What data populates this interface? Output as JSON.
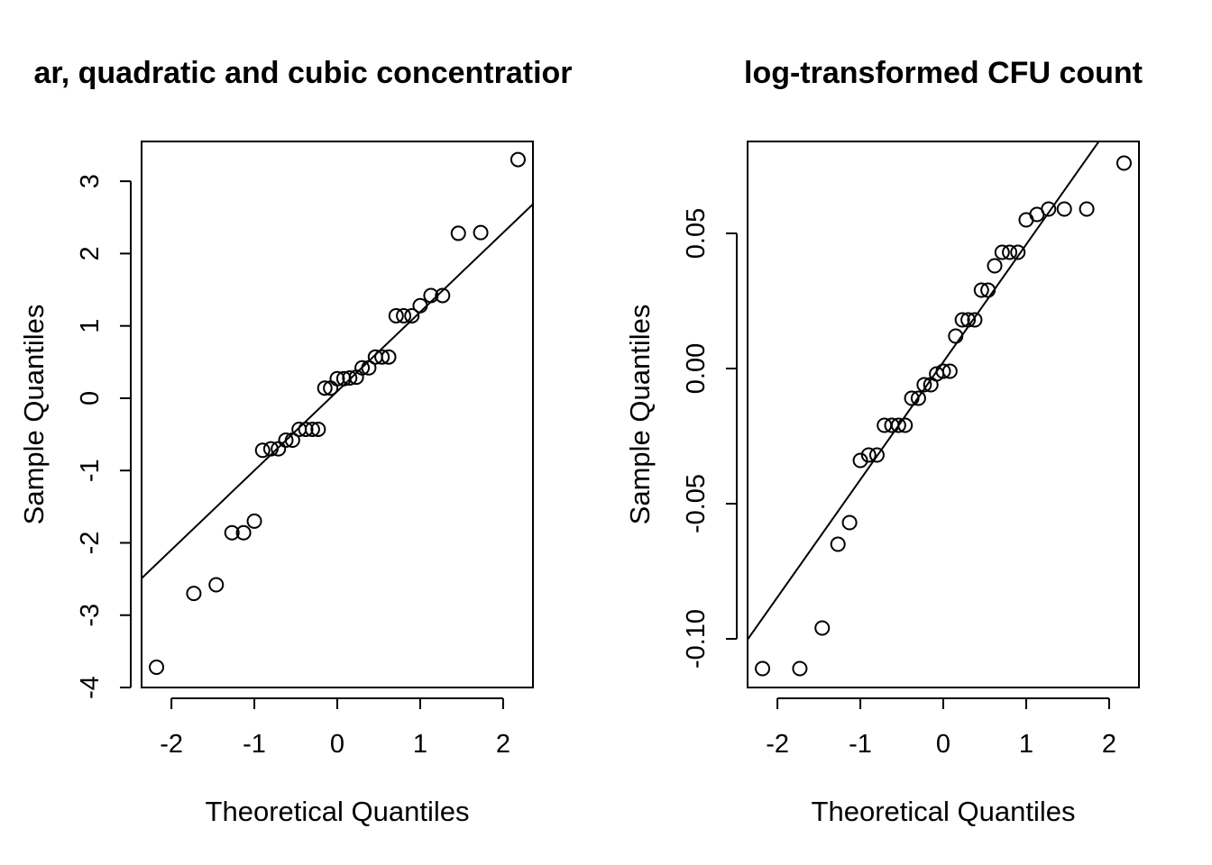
{
  "chart_data": [
    {
      "type": "scatter",
      "title": "ar, quadratic and cubic concentratior",
      "xlabel": "Theoretical Quantiles",
      "ylabel": "Sample Quantiles",
      "xlim": [
        -2.36,
        2.36
      ],
      "ylim": [
        -4.0,
        3.55
      ],
      "xticks": [
        -2,
        -1,
        0,
        1,
        2
      ],
      "yticks": [
        -4,
        -3,
        -2,
        -1,
        0,
        1,
        2,
        3
      ],
      "xtick_labels": [
        "-2",
        "-1",
        "0",
        "1",
        "2"
      ],
      "ytick_labels": [
        "-4",
        "-3",
        "-2",
        "-1",
        "0",
        "1",
        "2",
        "3"
      ],
      "reference_line": {
        "intercept": 0.096,
        "slope": 1.096
      },
      "points": [
        [
          -2.18,
          -3.72
        ],
        [
          -1.73,
          -2.7
        ],
        [
          -1.46,
          -2.58
        ],
        [
          -1.27,
          -1.86
        ],
        [
          -1.13,
          -1.86
        ],
        [
          -1.0,
          -1.7
        ],
        [
          -0.9,
          -0.72
        ],
        [
          -0.8,
          -0.7
        ],
        [
          -0.71,
          -0.7
        ],
        [
          -0.62,
          -0.58
        ],
        [
          -0.54,
          -0.58
        ],
        [
          -0.46,
          -0.43
        ],
        [
          -0.38,
          -0.43
        ],
        [
          -0.3,
          -0.43
        ],
        [
          -0.23,
          -0.43
        ],
        [
          -0.15,
          0.14
        ],
        [
          -0.08,
          0.14
        ],
        [
          0.0,
          0.27
        ],
        [
          0.08,
          0.27
        ],
        [
          0.15,
          0.28
        ],
        [
          0.23,
          0.29
        ],
        [
          0.3,
          0.42
        ],
        [
          0.38,
          0.42
        ],
        [
          0.46,
          0.57
        ],
        [
          0.54,
          0.57
        ],
        [
          0.62,
          0.57
        ],
        [
          0.71,
          1.14
        ],
        [
          0.8,
          1.14
        ],
        [
          0.9,
          1.14
        ],
        [
          1.0,
          1.28
        ],
        [
          1.13,
          1.42
        ],
        [
          1.27,
          1.42
        ],
        [
          1.46,
          2.28
        ],
        [
          1.73,
          2.29
        ],
        [
          2.18,
          3.3
        ]
      ]
    },
    {
      "type": "scatter",
      "title": "log-transformed CFU count",
      "xlabel": "Theoretical Quantiles",
      "ylabel": "Sample Quantiles",
      "xlim": [
        -2.36,
        2.36
      ],
      "ylim": [
        -0.118,
        0.084
      ],
      "xticks": [
        -2,
        -1,
        0,
        1,
        2
      ],
      "yticks": [
        -0.1,
        -0.05,
        0.0,
        0.05
      ],
      "xtick_labels": [
        "-2",
        "-1",
        "0",
        "1",
        "2"
      ],
      "ytick_labels": [
        "-0.10",
        "-0.05",
        "0.00",
        "0.05"
      ],
      "reference_line": {
        "intercept": 0.0024,
        "slope": 0.0435
      },
      "points": [
        [
          -2.18,
          -0.111
        ],
        [
          -1.73,
          -0.111
        ],
        [
          -1.46,
          -0.096
        ],
        [
          -1.27,
          -0.065
        ],
        [
          -1.13,
          -0.057
        ],
        [
          -1.0,
          -0.034
        ],
        [
          -0.9,
          -0.032
        ],
        [
          -0.8,
          -0.032
        ],
        [
          -0.71,
          -0.021
        ],
        [
          -0.62,
          -0.021
        ],
        [
          -0.54,
          -0.021
        ],
        [
          -0.46,
          -0.021
        ],
        [
          -0.38,
          -0.011
        ],
        [
          -0.3,
          -0.011
        ],
        [
          -0.23,
          -0.006
        ],
        [
          -0.15,
          -0.006
        ],
        [
          -0.08,
          -0.002
        ],
        [
          0.0,
          -0.001
        ],
        [
          0.08,
          -0.001
        ],
        [
          0.15,
          0.012
        ],
        [
          0.23,
          0.018
        ],
        [
          0.3,
          0.018
        ],
        [
          0.38,
          0.018
        ],
        [
          0.46,
          0.029
        ],
        [
          0.54,
          0.029
        ],
        [
          0.62,
          0.038
        ],
        [
          0.71,
          0.043
        ],
        [
          0.8,
          0.043
        ],
        [
          0.9,
          0.043
        ],
        [
          1.0,
          0.055
        ],
        [
          1.13,
          0.057
        ],
        [
          1.27,
          0.059
        ],
        [
          1.46,
          0.059
        ],
        [
          1.73,
          0.059
        ],
        [
          2.18,
          0.076
        ]
      ]
    }
  ]
}
